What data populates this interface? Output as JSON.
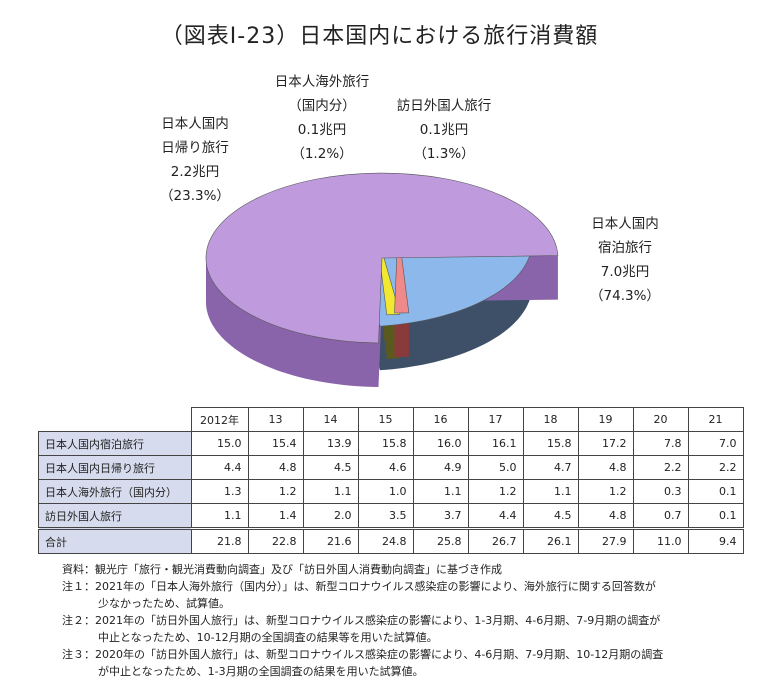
{
  "title": "（図表Ⅰ-23）日本国内における旅行消費額",
  "chart_data": [
    {
      "type": "pie",
      "title": "（図表Ⅰ-23）日本国内における旅行消費額",
      "slices": [
        {
          "lines": [
            "日本人国内",
            "宿泊旅行",
            "7.0兆円",
            "（74.3%）"
          ],
          "value": 7.0,
          "percent": 74.3,
          "color": "#bf9bde",
          "side": "#8a64aa"
        },
        {
          "lines": [
            "日本人国内",
            "日帰り旅行",
            "2.2兆円",
            "（23.3%）"
          ],
          "value": 2.2,
          "percent": 23.3,
          "color": "#8cb8ec",
          "side": "#3d5068"
        },
        {
          "lines": [
            "日本人海外旅行",
            "（国内分）",
            "0.1兆円",
            "（1.2%）"
          ],
          "value": 0.1,
          "percent": 1.2,
          "color": "#f2e832",
          "side": "#5a5a1e"
        },
        {
          "lines": [
            "訪日外国人旅行",
            "0.1兆円",
            "（1.3%）"
          ],
          "value": 0.1,
          "percent": 1.3,
          "color": "#f08a8a",
          "side": "#8a3a3a"
        }
      ]
    },
    {
      "type": "table",
      "columns": [
        "2012年",
        "13",
        "14",
        "15",
        "16",
        "17",
        "18",
        "19",
        "20",
        "21"
      ],
      "rows": [
        {
          "label": "日本人国内宿泊旅行",
          "values": [
            "15.0",
            "15.4",
            "13.9",
            "15.8",
            "16.0",
            "16.1",
            "15.8",
            "17.2",
            "7.8",
            "7.0"
          ]
        },
        {
          "label": "日本人国内日帰り旅行",
          "values": [
            "4.4",
            "4.8",
            "4.5",
            "4.6",
            "4.9",
            "5.0",
            "4.7",
            "4.8",
            "2.2",
            "2.2"
          ]
        },
        {
          "label": "日本人海外旅行（国内分）",
          "values": [
            "1.3",
            "1.2",
            "1.1",
            "1.0",
            "1.1",
            "1.2",
            "1.1",
            "1.2",
            "0.3",
            "0.1"
          ]
        },
        {
          "label": "訪日外国人旅行",
          "values": [
            "1.1",
            "1.4",
            "2.0",
            "3.5",
            "3.7",
            "4.4",
            "4.5",
            "4.8",
            "0.7",
            "0.1"
          ]
        },
        {
          "label": "合計",
          "values": [
            "21.8",
            "22.8",
            "21.6",
            "24.8",
            "25.8",
            "26.7",
            "26.1",
            "27.9",
            "11.0",
            "9.4"
          ]
        }
      ]
    }
  ],
  "notes": [
    {
      "lines": [
        "資料：観光庁「旅行・観光消費動向調査」及び「訪日外国人消費動向調査」に基づき作成"
      ]
    },
    {
      "lines": [
        "注１：2021年の「日本人海外旅行（国内分）」は、新型コロナウイルス感染症の影響により、海外旅行に関する回答数が",
        "少なかったため、試算値。"
      ]
    },
    {
      "lines": [
        "注２：2021年の「訪日外国人旅行」は、新型コロナウイルス感染症の影響により、1-3月期、4-6月期、7-9月期の調査が",
        "中止となったため、10-12月期の全国調査の結果等を用いた試算値。"
      ]
    },
    {
      "lines": [
        "注３：2020年の「訪日外国人旅行」は、新型コロナウイルス感染症の影響により、4-6月期、7-9月期、10-12月期の調査",
        "が中止となったため、1-3月期の全国調査の結果を用いた試算値。"
      ]
    }
  ]
}
